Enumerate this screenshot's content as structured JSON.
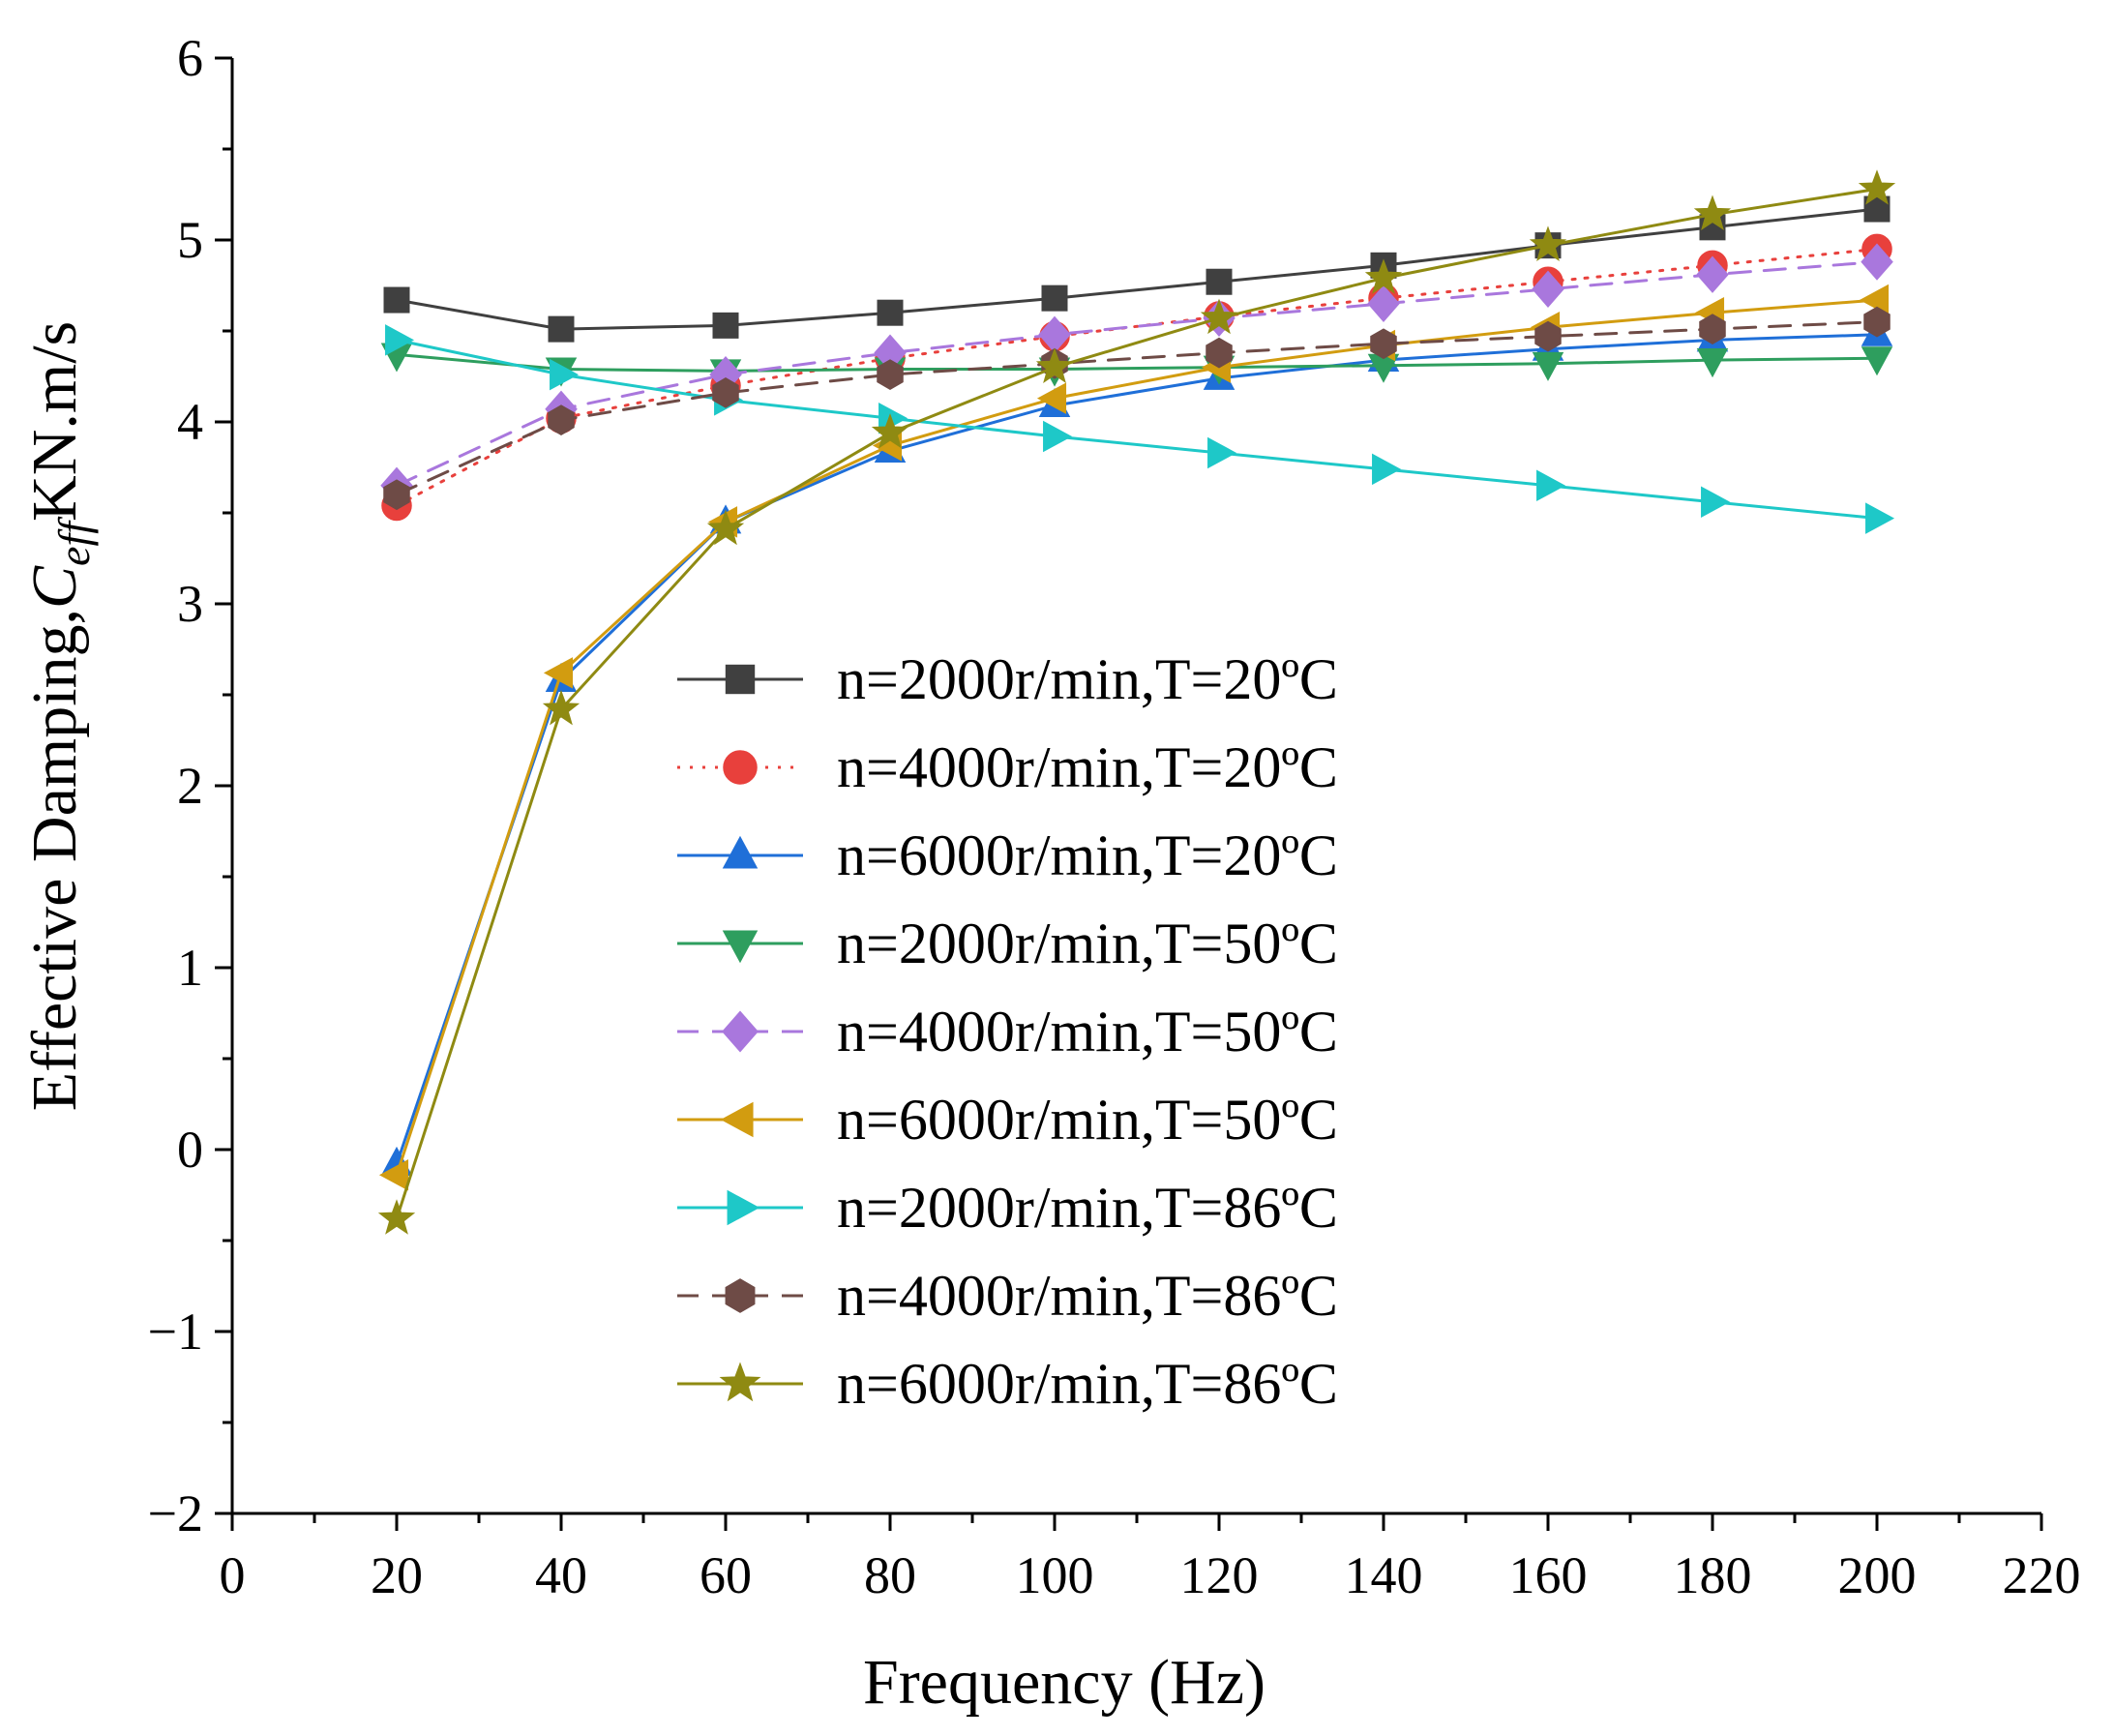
{
  "chart_data": {
    "type": "line",
    "title": "",
    "xlabel": "Frequency (Hz)",
    "ylabel_prefix": "Effective Damping,",
    "ylabel_symbol": "C",
    "ylabel_subscript": "eff",
    "ylabel_suffix": "KN.m/s",
    "xlim": [
      0,
      220
    ],
    "ylim": [
      -2,
      6
    ],
    "x_ticks": [
      "0",
      "20",
      "40",
      "60",
      "80",
      "100",
      "120",
      "140",
      "160",
      "180",
      "200",
      "220"
    ],
    "y_ticks": [
      "−2",
      "−1",
      "0",
      "1",
      "2",
      "3",
      "4",
      "5",
      "6"
    ],
    "grid": false,
    "legend_position": "center",
    "x": [
      20,
      40,
      60,
      80,
      100,
      120,
      140,
      160,
      180,
      200
    ],
    "series": [
      {
        "name": "n=2000r/min,T=20ºC",
        "color": "#404040",
        "marker": "square",
        "dash": "solid",
        "values": [
          4.67,
          4.51,
          4.53,
          4.6,
          4.68,
          4.77,
          4.86,
          4.97,
          5.07,
          5.17
        ]
      },
      {
        "name": "n=4000r/min,T=20ºC",
        "color": "#e8403c",
        "marker": "circle",
        "dash": "dotted",
        "values": [
          3.54,
          4.02,
          4.2,
          4.35,
          4.47,
          4.58,
          4.68,
          4.77,
          4.86,
          4.95
        ]
      },
      {
        "name": "n=6000r/min,T=20ºC",
        "color": "#1f6fd8",
        "marker": "triangle-up",
        "dash": "solid",
        "values": [
          -0.08,
          2.58,
          3.45,
          3.84,
          4.09,
          4.24,
          4.34,
          4.4,
          4.45,
          4.48
        ]
      },
      {
        "name": "n=2000r/min,T=50ºC",
        "color": "#2e9e5e",
        "marker": "triangle-down",
        "dash": "solid",
        "values": [
          4.37,
          4.29,
          4.28,
          4.29,
          4.29,
          4.3,
          4.31,
          4.32,
          4.34,
          4.35
        ]
      },
      {
        "name": "n=4000r/min,T=50ºC",
        "color": "#a977dd",
        "marker": "diamond",
        "dash": "dashed",
        "values": [
          3.65,
          4.07,
          4.26,
          4.38,
          4.48,
          4.57,
          4.65,
          4.73,
          4.81,
          4.88
        ]
      },
      {
        "name": "n=6000r/min,T=50ºC",
        "color": "#d29c10",
        "marker": "triangle-left",
        "dash": "solid",
        "values": [
          -0.14,
          2.62,
          3.45,
          3.87,
          4.13,
          4.3,
          4.42,
          4.52,
          4.6,
          4.67
        ]
      },
      {
        "name": "n=2000r/min,T=86ºC",
        "color": "#1ec8c8",
        "marker": "triangle-right",
        "dash": "solid",
        "values": [
          4.45,
          4.26,
          4.12,
          4.02,
          3.92,
          3.83,
          3.74,
          3.65,
          3.56,
          3.47
        ]
      },
      {
        "name": "n=4000r/min,T=86ºC",
        "color": "#6e4b46",
        "marker": "hexagon",
        "dash": "dashed",
        "values": [
          3.6,
          4.01,
          4.16,
          4.26,
          4.32,
          4.38,
          4.43,
          4.47,
          4.51,
          4.55
        ]
      },
      {
        "name": "n=6000r/min,T=86ºC",
        "color": "#8f8a12",
        "marker": "star",
        "dash": "solid",
        "values": [
          -0.38,
          2.42,
          3.41,
          3.94,
          4.3,
          4.57,
          4.79,
          4.97,
          5.14,
          5.28
        ]
      }
    ]
  }
}
